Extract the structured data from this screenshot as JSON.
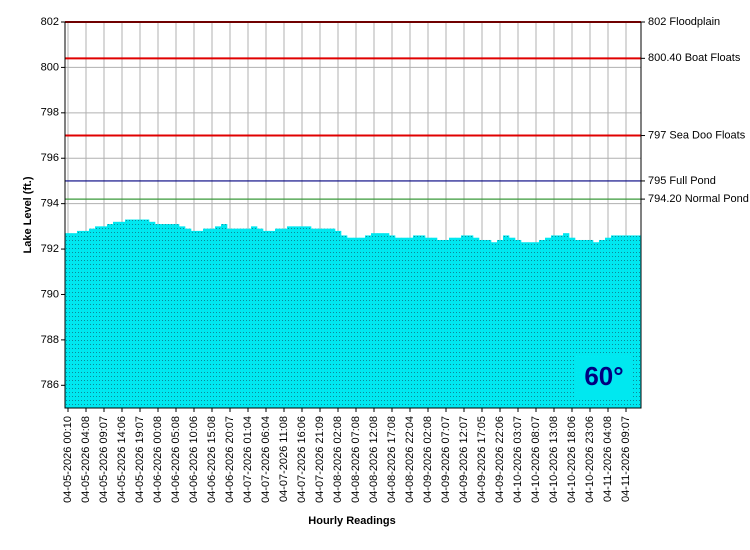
{
  "chart_data": {
    "type": "area",
    "x_label": "Hourly Readings",
    "y_label": "Lake Level (ft.)",
    "badge": "60°",
    "ylim": [
      785,
      802
    ],
    "yticks": [
      786,
      788,
      790,
      792,
      794,
      796,
      798,
      800,
      802
    ],
    "grid": true,
    "color": "#00e8f0",
    "reference_lines": [
      {
        "value": 802,
        "label": "802 Floodplain",
        "color": "#e00000"
      },
      {
        "value": 800.4,
        "label": "800.40 Boat Floats",
        "color": "#e00000"
      },
      {
        "value": 797,
        "label": "797 Sea Doo Floats",
        "color": "#e00000"
      },
      {
        "value": 795,
        "label": "795 Full Pond",
        "color": "#000080"
      },
      {
        "value": 794.2,
        "label": "794.20 Normal Pond",
        "color": "#3a9a3a"
      }
    ],
    "categories": [
      "04-05-2026 00:10",
      null,
      null,
      "04-05-2026 04:08",
      null,
      null,
      "04-05-2026 09:07",
      null,
      null,
      "04-05-2026 14:06",
      null,
      null,
      "04-05-2026 19:07",
      null,
      null,
      "04-06-2026 00:08",
      null,
      null,
      "04-06-2026 05:08",
      null,
      null,
      "04-06-2026 10:06",
      null,
      null,
      "04-06-2026 15:08",
      null,
      null,
      "04-06-2026 20:07",
      null,
      null,
      "04-07-2026 01:04",
      null,
      null,
      "04-07-2026 06:04",
      null,
      null,
      "04-07-2026 11:08",
      null,
      null,
      "04-07-2026 16:06",
      null,
      null,
      "04-07-2026 21:09",
      null,
      null,
      "04-08-2026 02:08",
      null,
      null,
      "04-08-2026 07:08",
      null,
      null,
      "04-08-2026 12:08",
      null,
      null,
      "04-08-2026 17:08",
      null,
      null,
      "04-08-2026 22:04",
      null,
      null,
      "04-09-2026 02:08",
      null,
      null,
      "04-09-2026 07:07",
      null,
      null,
      "04-09-2026 12:07",
      null,
      null,
      "04-09-2026 17:05",
      null,
      null,
      "04-09-2026 22:06",
      null,
      null,
      "04-10-2026 03:07",
      null,
      null,
      "04-10-2026 08:07",
      null,
      null,
      "04-10-2026 13:08",
      null,
      null,
      "04-10-2026 18:06",
      null,
      null,
      "04-10-2026 23:06",
      null,
      null,
      "04-11-2026 04:08",
      null,
      null,
      "04-11-2026 09:07",
      null,
      null
    ],
    "values": [
      792.7,
      792.7,
      792.8,
      792.8,
      792.9,
      793.0,
      793.0,
      793.1,
      793.2,
      793.2,
      793.3,
      793.3,
      793.3,
      793.3,
      793.2,
      793.1,
      793.1,
      793.1,
      793.1,
      793.0,
      792.9,
      792.8,
      792.8,
      792.9,
      792.9,
      793.0,
      793.1,
      792.9,
      792.9,
      792.9,
      792.9,
      793.0,
      792.9,
      792.8,
      792.8,
      792.9,
      792.9,
      793.0,
      793.0,
      793.0,
      793.0,
      792.9,
      792.9,
      792.9,
      792.9,
      792.8,
      792.6,
      792.5,
      792.5,
      792.5,
      792.6,
      792.7,
      792.7,
      792.7,
      792.6,
      792.5,
      792.5,
      792.5,
      792.6,
      792.6,
      792.5,
      792.5,
      792.4,
      792.4,
      792.5,
      792.5,
      792.6,
      792.6,
      792.5,
      792.4,
      792.4,
      792.3,
      792.4,
      792.6,
      792.5,
      792.4,
      792.3,
      792.3,
      792.3,
      792.4,
      792.5,
      792.6,
      792.6,
      792.7,
      792.5,
      792.4,
      792.4,
      792.4,
      792.3,
      792.4,
      792.5,
      792.6,
      792.6,
      792.6,
      792.6,
      792.6
    ]
  }
}
